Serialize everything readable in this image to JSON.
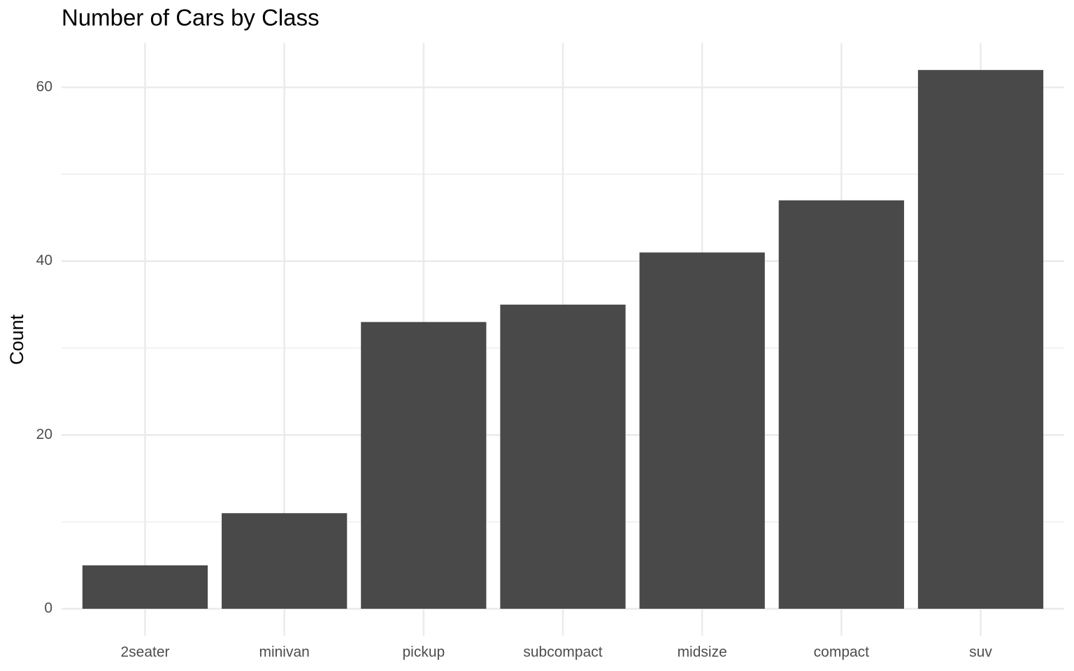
{
  "chart_data": {
    "type": "bar",
    "title": "Number of Cars by Class",
    "ylabel": "Count",
    "categories": [
      "2seater",
      "minivan",
      "pickup",
      "subcompact",
      "midsize",
      "compact",
      "suv"
    ],
    "values": [
      5,
      11,
      33,
      35,
      41,
      47,
      62
    ],
    "color": "#494949",
    "ylim": [
      -3.1,
      65.1
    ],
    "yticks": [
      0,
      20,
      40,
      60
    ],
    "minor_yticks": [
      10,
      30,
      50
    ],
    "grid": true
  }
}
